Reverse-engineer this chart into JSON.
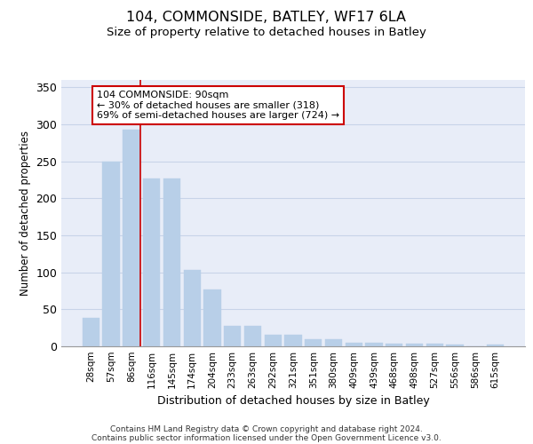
{
  "title": "104, COMMONSIDE, BATLEY, WF17 6LA",
  "subtitle": "Size of property relative to detached houses in Batley",
  "xlabel": "Distribution of detached houses by size in Batley",
  "ylabel": "Number of detached properties",
  "categories": [
    "28sqm",
    "57sqm",
    "86sqm",
    "116sqm",
    "145sqm",
    "174sqm",
    "204sqm",
    "233sqm",
    "263sqm",
    "292sqm",
    "321sqm",
    "351sqm",
    "380sqm",
    "409sqm",
    "439sqm",
    "468sqm",
    "498sqm",
    "527sqm",
    "556sqm",
    "586sqm",
    "615sqm"
  ],
  "values": [
    38,
    250,
    293,
    227,
    227,
    103,
    77,
    28,
    28,
    16,
    16,
    10,
    10,
    5,
    5,
    4,
    4,
    4,
    3,
    0,
    3
  ],
  "bar_color": "#b8cfe8",
  "bar_edge_color": "#b8cfe8",
  "grid_color": "#c8d4e8",
  "background_color": "#e8edf8",
  "red_line_x": 2.425,
  "annotation_text": "104 COMMONSIDE: 90sqm\n← 30% of detached houses are smaller (318)\n69% of semi-detached houses are larger (724) →",
  "annotation_box_color": "#ffffff",
  "annotation_box_edge": "#cc0000",
  "ylim": [
    0,
    360
  ],
  "yticks": [
    0,
    50,
    100,
    150,
    200,
    250,
    300,
    350
  ],
  "footer_line1": "Contains HM Land Registry data © Crown copyright and database right 2024.",
  "footer_line2": "Contains public sector information licensed under the Open Government Licence v3.0."
}
